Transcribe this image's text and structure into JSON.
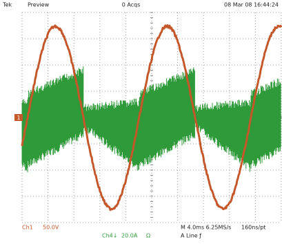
{
  "header": {
    "brand": "Tek",
    "mode": "Preview",
    "acquisitions": "0 Acqs",
    "timestamp": "08 Mar 08 16:44:24"
  },
  "markers": {
    "ch1": "1"
  },
  "footer": {
    "ch1_label": "Ch1",
    "ch1_scale": "50.0V",
    "ch4_label": "Ch4↓",
    "ch4_scale": "20.0A",
    "ch4_unit": "Ω",
    "timebase": "M 4.0ms 6.25MS/s",
    "resolution": "160ns/pt",
    "trigger": "A  Line ƒ"
  }
}
